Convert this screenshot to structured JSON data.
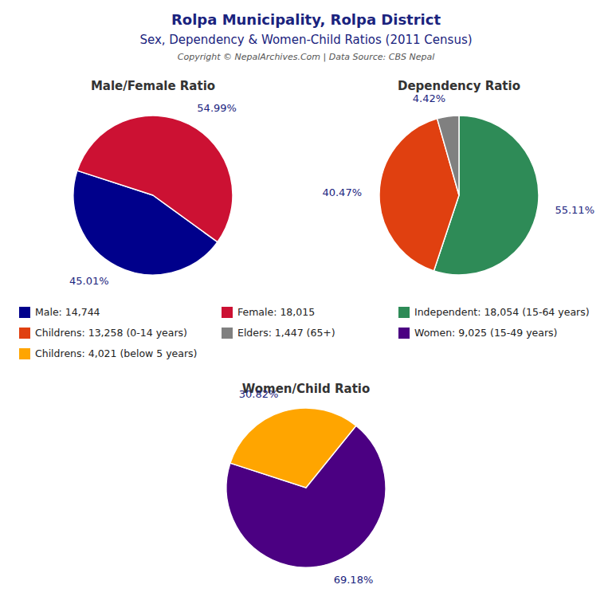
{
  "title": "Rolpa Municipality, Rolpa District",
  "subtitle": "Sex, Dependency & Women-Child Ratios (2011 Census)",
  "annotations": [
    "Copyright © NepalArchives.Com | Data Source: CBS Nepal"
  ],
  "chart_data": [
    {
      "type": "pie",
      "title": "Male/Female Ratio",
      "categories": [
        "Male: 14,744",
        "Female: 18,015"
      ],
      "values": [
        45.01,
        54.99
      ],
      "value_labels": [
        "45.01%",
        "54.99%"
      ],
      "colors": [
        "#00008B",
        "#CC1133"
      ],
      "legend": "center",
      "data_labels": true
    },
    {
      "type": "pie",
      "title": "Dependency Ratio",
      "categories": [
        "Independent: 18,054 (15-64 years)",
        "Childrens: 13,258 (0-14 years)",
        "Elders: 1,447 (65+)"
      ],
      "values": [
        55.11,
        40.47,
        4.42
      ],
      "value_labels": [
        "55.11%",
        "40.47%",
        "4.42%"
      ],
      "colors": [
        "#2E8B57",
        "#E04010",
        "#808080"
      ],
      "legend": "center",
      "data_labels": true
    },
    {
      "type": "pie",
      "title": "Women/Child Ratio",
      "categories": [
        "Women: 9,025 (15-49 years)",
        "Childrens: 4,021 (below 5 years)"
      ],
      "values": [
        69.18,
        30.82
      ],
      "value_labels": [
        "69.18%",
        "30.82%"
      ],
      "colors": [
        "#4B0082",
        "#FFA500"
      ],
      "legend": "center",
      "data_labels": true
    }
  ]
}
